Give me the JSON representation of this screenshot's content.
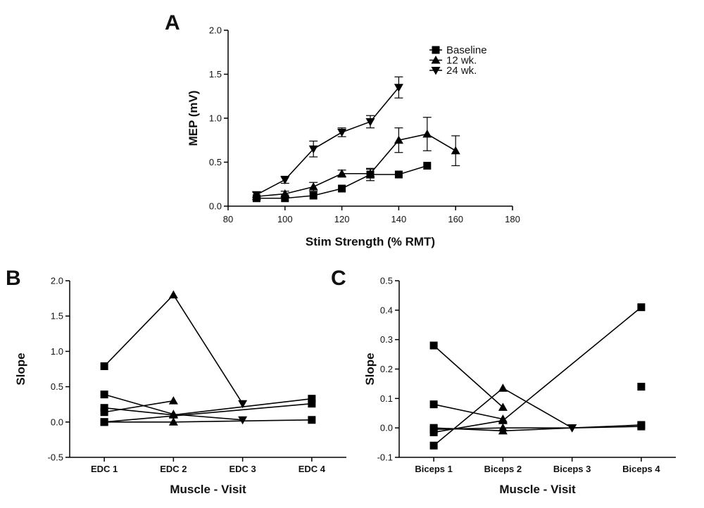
{
  "chart_data": [
    {
      "panel": "A",
      "type": "line",
      "xlabel": "Stim Strength (% RMT)",
      "ylabel": "MEP (mV)",
      "xlim": [
        80,
        180
      ],
      "ylim": [
        0,
        2.0
      ],
      "xticks": [
        "80",
        "100",
        "120",
        "140",
        "160",
        "180"
      ],
      "yticks": [
        "0.0",
        "0.5",
        "1.0",
        "1.5",
        "2.0"
      ],
      "grid": false,
      "legend": "top-right",
      "series": [
        {
          "name": "Baseline",
          "marker": "square",
          "x": [
            90,
            100,
            110,
            120,
            130,
            140,
            150
          ],
          "y": [
            0.09,
            0.09,
            0.12,
            0.2,
            0.36,
            0.36,
            0.46
          ],
          "err": [
            0.01,
            0.01,
            0.02,
            0.02,
            0.07,
            0.02,
            0.01
          ]
        },
        {
          "name": "12 wk.",
          "marker": "triangle-up",
          "x": [
            90,
            100,
            110,
            120,
            130,
            140,
            150,
            160
          ],
          "y": [
            0.11,
            0.14,
            0.22,
            0.37,
            0.37,
            0.75,
            0.82,
            0.63
          ],
          "err": [
            0.02,
            0.03,
            0.05,
            0.04,
            0.05,
            0.14,
            0.19,
            0.17
          ]
        },
        {
          "name": "24 wk.",
          "marker": "triangle-down",
          "x": [
            90,
            100,
            110,
            120,
            130,
            140
          ],
          "y": [
            0.13,
            0.3,
            0.65,
            0.84,
            0.96,
            1.35
          ],
          "err": [
            0.03,
            0.04,
            0.09,
            0.05,
            0.07,
            0.12
          ]
        }
      ]
    },
    {
      "panel": "B",
      "type": "line",
      "xlabel": "Muscle - Visit",
      "ylabel": "Slope",
      "categories": [
        "EDC 1",
        "EDC 2",
        "EDC 3",
        "EDC 4"
      ],
      "ylim": [
        -0.5,
        2.0
      ],
      "yticks": [
        "-0.5",
        "0.0",
        "0.5",
        "1.0",
        "1.5",
        "2.0"
      ],
      "grid": false,
      "lines": [
        {
          "points": [
            [
              0,
              0.79
            ],
            [
              1,
              1.8
            ],
            [
              2,
              0.26
            ]
          ],
          "markers": [
            "square",
            "triangle-up",
            "triangle-down"
          ]
        },
        {
          "points": [
            [
              0,
              0.39
            ],
            [
              1,
              0.11
            ],
            [
              2,
              0.03
            ]
          ],
          "markers": [
            "square",
            "triangle-up",
            "triangle-down"
          ]
        },
        {
          "points": [
            [
              0,
              0.2
            ],
            [
              1,
              0.1
            ],
            [
              3,
              0.33
            ]
          ],
          "markers": [
            "square",
            "triangle-up",
            "square"
          ]
        },
        {
          "points": [
            [
              0,
              0.14
            ],
            [
              1,
              0.3
            ]
          ],
          "markers": [
            "square",
            "triangle-up"
          ]
        },
        {
          "points": [
            [
              0,
              0.0
            ],
            [
              1,
              0.0
            ],
            [
              3,
              0.03
            ]
          ],
          "markers": [
            "square",
            "triangle-up",
            "square"
          ]
        },
        {
          "points": [
            [
              0,
              0.0
            ],
            [
              3,
              0.26
            ]
          ],
          "markers": [
            "square",
            "square"
          ]
        }
      ]
    },
    {
      "panel": "C",
      "type": "line",
      "xlabel": "Muscle - Visit",
      "ylabel": "Slope",
      "categories": [
        "Biceps 1",
        "Biceps 2",
        "Biceps 3",
        "Biceps 4"
      ],
      "ylim": [
        -0.1,
        0.5
      ],
      "yticks": [
        "-0.1",
        "0.0",
        "0.1",
        "0.2",
        "0.3",
        "0.4",
        "0.5"
      ],
      "grid": false,
      "lines": [
        {
          "points": [
            [
              0,
              0.28
            ],
            [
              1,
              0.07
            ]
          ],
          "markers": [
            "square",
            "triangle-up"
          ]
        },
        {
          "points": [
            [
              0,
              0.08
            ],
            [
              1,
              0.03
            ]
          ],
          "markers": [
            "square",
            "triangle-up"
          ]
        },
        {
          "points": [
            [
              0,
              -0.06
            ],
            [
              1,
              0.135
            ],
            [
              2,
              0.0
            ]
          ],
          "markers": [
            "square",
            "triangle-up",
            "triangle-down"
          ]
        },
        {
          "points": [
            [
              0,
              -0.015
            ],
            [
              1,
              0.025
            ],
            [
              3,
              0.41
            ]
          ],
          "markers": [
            "square",
            "triangle-up",
            "square"
          ]
        },
        {
          "points": [
            [
              0,
              0.0
            ],
            [
              1,
              -0.01
            ],
            [
              3,
              0.01
            ]
          ],
          "markers": [
            "square",
            "triangle-up",
            "square"
          ]
        },
        {
          "points": [
            [
              0,
              -0.005
            ],
            [
              1,
              0.0
            ],
            [
              2,
              0.0
            ],
            [
              3,
              0.005
            ]
          ],
          "markers": [
            "square",
            "triangle-up",
            "triangle-down",
            "square"
          ]
        },
        {
          "points": [
            [
              3,
              0.14
            ]
          ],
          "markers": [
            "square"
          ]
        }
      ]
    }
  ]
}
